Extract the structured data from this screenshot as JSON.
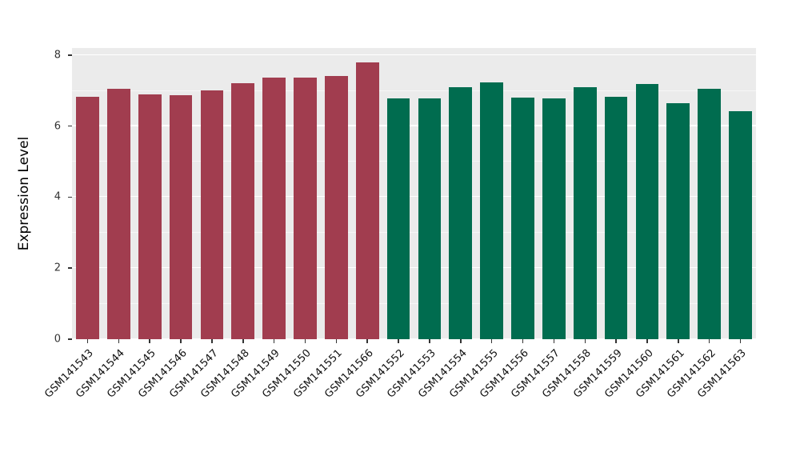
{
  "chart_data": {
    "type": "bar",
    "title": "",
    "xlabel": "",
    "ylabel": "Expression Level",
    "ylim": [
      0,
      8.2
    ],
    "yticks": [
      0,
      2,
      4,
      6,
      8
    ],
    "yticks_minor": [
      1,
      3,
      5,
      7
    ],
    "grid": true,
    "legend": "none",
    "plot_background": "#EBEBEB",
    "grid_color": "#FFFFFF",
    "categories": [
      "GSM141543",
      "GSM141544",
      "GSM141545",
      "GSM141546",
      "GSM141547",
      "GSM141548",
      "GSM141549",
      "GSM141550",
      "GSM141551",
      "GSM141566",
      "GSM141552",
      "GSM141553",
      "GSM141554",
      "GSM141555",
      "GSM141556",
      "GSM141557",
      "GSM141558",
      "GSM141559",
      "GSM141560",
      "GSM141561",
      "GSM141562",
      "GSM141563"
    ],
    "values": [
      6.82,
      7.05,
      6.9,
      6.87,
      7.0,
      7.2,
      7.37,
      7.36,
      7.42,
      7.8,
      6.77,
      6.77,
      7.1,
      7.23,
      6.8,
      6.78,
      7.1,
      6.83,
      7.18,
      6.65,
      7.05,
      6.42
    ],
    "group_assignments": [
      "groupA",
      "groupA",
      "groupA",
      "groupA",
      "groupA",
      "groupA",
      "groupA",
      "groupA",
      "groupA",
      "groupA",
      "groupB",
      "groupB",
      "groupB",
      "groupB",
      "groupB",
      "groupB",
      "groupB",
      "groupB",
      "groupB",
      "groupB",
      "groupB",
      "groupB"
    ],
    "group_colors": {
      "groupA": "#A13D4F",
      "groupB": "#006C4F"
    }
  }
}
